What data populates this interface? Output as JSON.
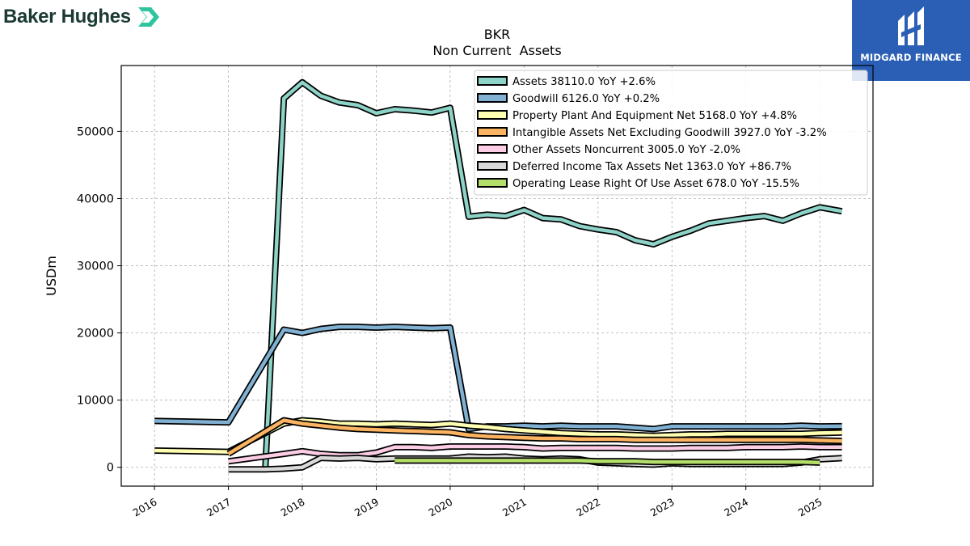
{
  "branding": {
    "left_logo_text": "Baker Hughes",
    "right_logo_text": "MIDGARD FINANCE"
  },
  "chart_data": {
    "type": "line",
    "title": "BKR",
    "subtitle": "Non Current  Assets",
    "xlabel": "",
    "ylabel": "USDm",
    "xlim": [
      2015.55,
      2025.72
    ],
    "ylim": [
      -2800,
      59800
    ],
    "yticks": [
      0,
      10000,
      20000,
      30000,
      40000,
      50000
    ],
    "ytick_labels": [
      "0",
      "10000",
      "20000",
      "30000",
      "40000",
      "50000"
    ],
    "xticks": [
      2016,
      2017,
      2018,
      2019,
      2020,
      2021,
      2022,
      2023,
      2024,
      2025
    ],
    "xtick_labels": [
      "2016",
      "2017",
      "2018",
      "2019",
      "2020",
      "2021",
      "2022",
      "2023",
      "2024",
      "2025"
    ],
    "grid": true,
    "legend_position": "top-right",
    "series": [
      {
        "name": "Assets",
        "legend": "Assets  38110.0 YoY +2.6%",
        "color": "#8dd3c7",
        "x": [
          2017.0,
          2017.25,
          2017.5,
          2017.75,
          2018.0,
          2018.25,
          2018.5,
          2018.75,
          2019.0,
          2019.25,
          2019.5,
          2019.75,
          2020.0,
          2020.25,
          2020.5,
          2020.75,
          2021.0,
          2021.25,
          2021.5,
          2021.75,
          2022.0,
          2022.25,
          2022.5,
          2022.75,
          2023.0,
          2023.25,
          2023.5,
          2023.75,
          2024.0,
          2024.25,
          2024.5,
          2024.75,
          2025.0,
          2025.3
        ],
        "values": [
          null,
          null,
          0,
          54900,
          57300,
          55300,
          54300,
          53900,
          52700,
          53300,
          53100,
          52800,
          53500,
          37300,
          37600,
          37400,
          38300,
          37100,
          36900,
          35900,
          35400,
          35000,
          33800,
          33200,
          34300,
          35200,
          36300,
          36700,
          37100,
          37400,
          36700,
          37800,
          38700,
          38110
        ]
      },
      {
        "name": "Goodwill",
        "legend": "Goodwill  6126.0 YoY +0.2%",
        "color": "#80b1d3",
        "x": [
          2016.0,
          2017.0,
          2017.75,
          2018.0,
          2018.25,
          2018.5,
          2018.75,
          2019.0,
          2019.25,
          2019.5,
          2019.75,
          2020.0,
          2020.25,
          2020.5,
          2020.75,
          2021.0,
          2021.25,
          2021.5,
          2021.75,
          2022.0,
          2022.25,
          2022.5,
          2022.75,
          2023.0,
          2023.25,
          2023.5,
          2023.75,
          2024.0,
          2024.25,
          2024.5,
          2024.75,
          2025.0,
          2025.3
        ],
        "values": [
          6900,
          6700,
          20500,
          20000,
          20600,
          20900,
          20900,
          20800,
          20900,
          20800,
          20700,
          20800,
          5700,
          6100,
          6100,
          6200,
          6100,
          6200,
          6100,
          6100,
          6100,
          5900,
          5700,
          6100,
          6100,
          6100,
          6100,
          6100,
          6100,
          6100,
          6200,
          6100,
          6126
        ]
      },
      {
        "name": "Property Plant And Equipment Net",
        "legend": "Property Plant And Equipment Net  5168.0 YoY +4.8%",
        "color": "#ffffb3",
        "x": [
          2016.0,
          2017.0,
          2017.75,
          2018.0,
          2018.25,
          2018.5,
          2018.75,
          2019.0,
          2019.25,
          2019.5,
          2019.75,
          2020.0,
          2020.25,
          2020.5,
          2020.75,
          2021.0,
          2021.25,
          2021.5,
          2021.75,
          2022.0,
          2022.25,
          2022.5,
          2022.75,
          2023.0,
          2023.25,
          2023.5,
          2023.75,
          2024.0,
          2024.25,
          2024.5,
          2024.75,
          2025.0,
          2025.3
        ],
        "values": [
          2500,
          2300,
          6500,
          7000,
          6800,
          6500,
          6500,
          6400,
          6500,
          6400,
          6300,
          6500,
          6200,
          6000,
          5700,
          5500,
          5300,
          5100,
          5000,
          4900,
          4900,
          4800,
          4700,
          4800,
          4900,
          4900,
          5000,
          5000,
          5000,
          5000,
          5000,
          5100,
          5168
        ]
      },
      {
        "name": "Intangible Assets Net Excluding Goodwill",
        "legend": "Intangible Assets Net Excluding Goodwill  3927.0 YoY -3.2%",
        "color": "#fdb462",
        "x": [
          2017.0,
          2017.75,
          2018.0,
          2018.25,
          2018.5,
          2018.75,
          2019.0,
          2019.25,
          2019.5,
          2019.75,
          2020.0,
          2020.25,
          2020.5,
          2020.75,
          2021.0,
          2021.25,
          2021.5,
          2021.75,
          2022.0,
          2022.25,
          2022.5,
          2022.75,
          2023.0,
          2023.25,
          2023.5,
          2023.75,
          2024.0,
          2024.25,
          2024.5,
          2024.75,
          2025.0,
          2025.3
        ],
        "values": [
          2000,
          7000,
          6500,
          6200,
          5900,
          5700,
          5600,
          5500,
          5400,
          5300,
          5200,
          4800,
          4600,
          4500,
          4400,
          4300,
          4300,
          4200,
          4200,
          4200,
          4100,
          4100,
          4100,
          4100,
          4100,
          4100,
          4100,
          4100,
          4100,
          4100,
          4000,
          3927
        ]
      },
      {
        "name": "Other Assets Noncurrent",
        "legend": "Other Assets Noncurrent  3005.0 YoY -2.0%",
        "color": "#fccde5",
        "x": [
          2017.0,
          2017.75,
          2018.0,
          2018.25,
          2018.5,
          2018.75,
          2019.0,
          2019.25,
          2019.5,
          2019.75,
          2020.0,
          2020.25,
          2020.5,
          2020.75,
          2021.0,
          2021.25,
          2021.5,
          2021.75,
          2022.0,
          2022.25,
          2022.5,
          2022.75,
          2023.0,
          2023.25,
          2023.5,
          2023.75,
          2024.0,
          2024.25,
          2024.5,
          2024.75,
          2025.0,
          2025.3
        ],
        "values": [
          900,
          2000,
          2400,
          2000,
          1800,
          1800,
          2200,
          3000,
          3000,
          2900,
          3100,
          3100,
          3100,
          3100,
          3000,
          2800,
          2900,
          2900,
          2900,
          2900,
          2800,
          2800,
          2800,
          2900,
          2900,
          2900,
          3000,
          3000,
          3000,
          3100,
          3000,
          3005
        ]
      },
      {
        "name": "Deferred Income Tax Assets Net",
        "legend": "Deferred Income Tax Assets Net  1363.0 YoY +86.7%",
        "color": "#d9d9d9",
        "x": [
          2017.0,
          2017.5,
          2017.75,
          2018.0,
          2018.25,
          2018.5,
          2018.75,
          2019.0,
          2019.25,
          2019.5,
          2019.75,
          2020.0,
          2020.25,
          2020.5,
          2020.75,
          2021.0,
          2021.25,
          2021.5,
          2021.75,
          2022.0,
          2022.25,
          2022.5,
          2022.75,
          2023.0,
          2023.25,
          2023.5,
          2023.75,
          2024.0,
          2024.25,
          2024.5,
          2024.75,
          2025.0,
          2025.3
        ],
        "values": [
          -300,
          -300,
          -200,
          0,
          1400,
          1300,
          1400,
          1200,
          1300,
          1300,
          1300,
          1300,
          1600,
          1500,
          1600,
          1300,
          1200,
          1300,
          1200,
          700,
          600,
          500,
          400,
          600,
          500,
          500,
          500,
          500,
          500,
          500,
          700,
          1200,
          1363
        ]
      },
      {
        "name": "Operating Lease Right Of Use Asset",
        "legend": "Operating Lease Right Of Use Asset  678.0 YoY -15.5%",
        "color": "#b3de69",
        "x": [
          2019.25,
          2019.5,
          2019.75,
          2020.0,
          2020.25,
          2020.5,
          2020.75,
          2021.0,
          2021.25,
          2021.5,
          2021.75,
          2022.0,
          2022.25,
          2022.5,
          2022.75,
          2023.0,
          2023.25,
          2023.5,
          2023.75,
          2024.0,
          2024.25,
          2024.5,
          2024.75,
          2025.0
        ],
        "values": [
          1000,
          1000,
          1000,
          1000,
          1000,
          1000,
          1000,
          1000,
          1000,
          1000,
          1000,
          900,
          900,
          900,
          800,
          800,
          800,
          800,
          800,
          800,
          800,
          800,
          800,
          700
        ]
      }
    ]
  }
}
